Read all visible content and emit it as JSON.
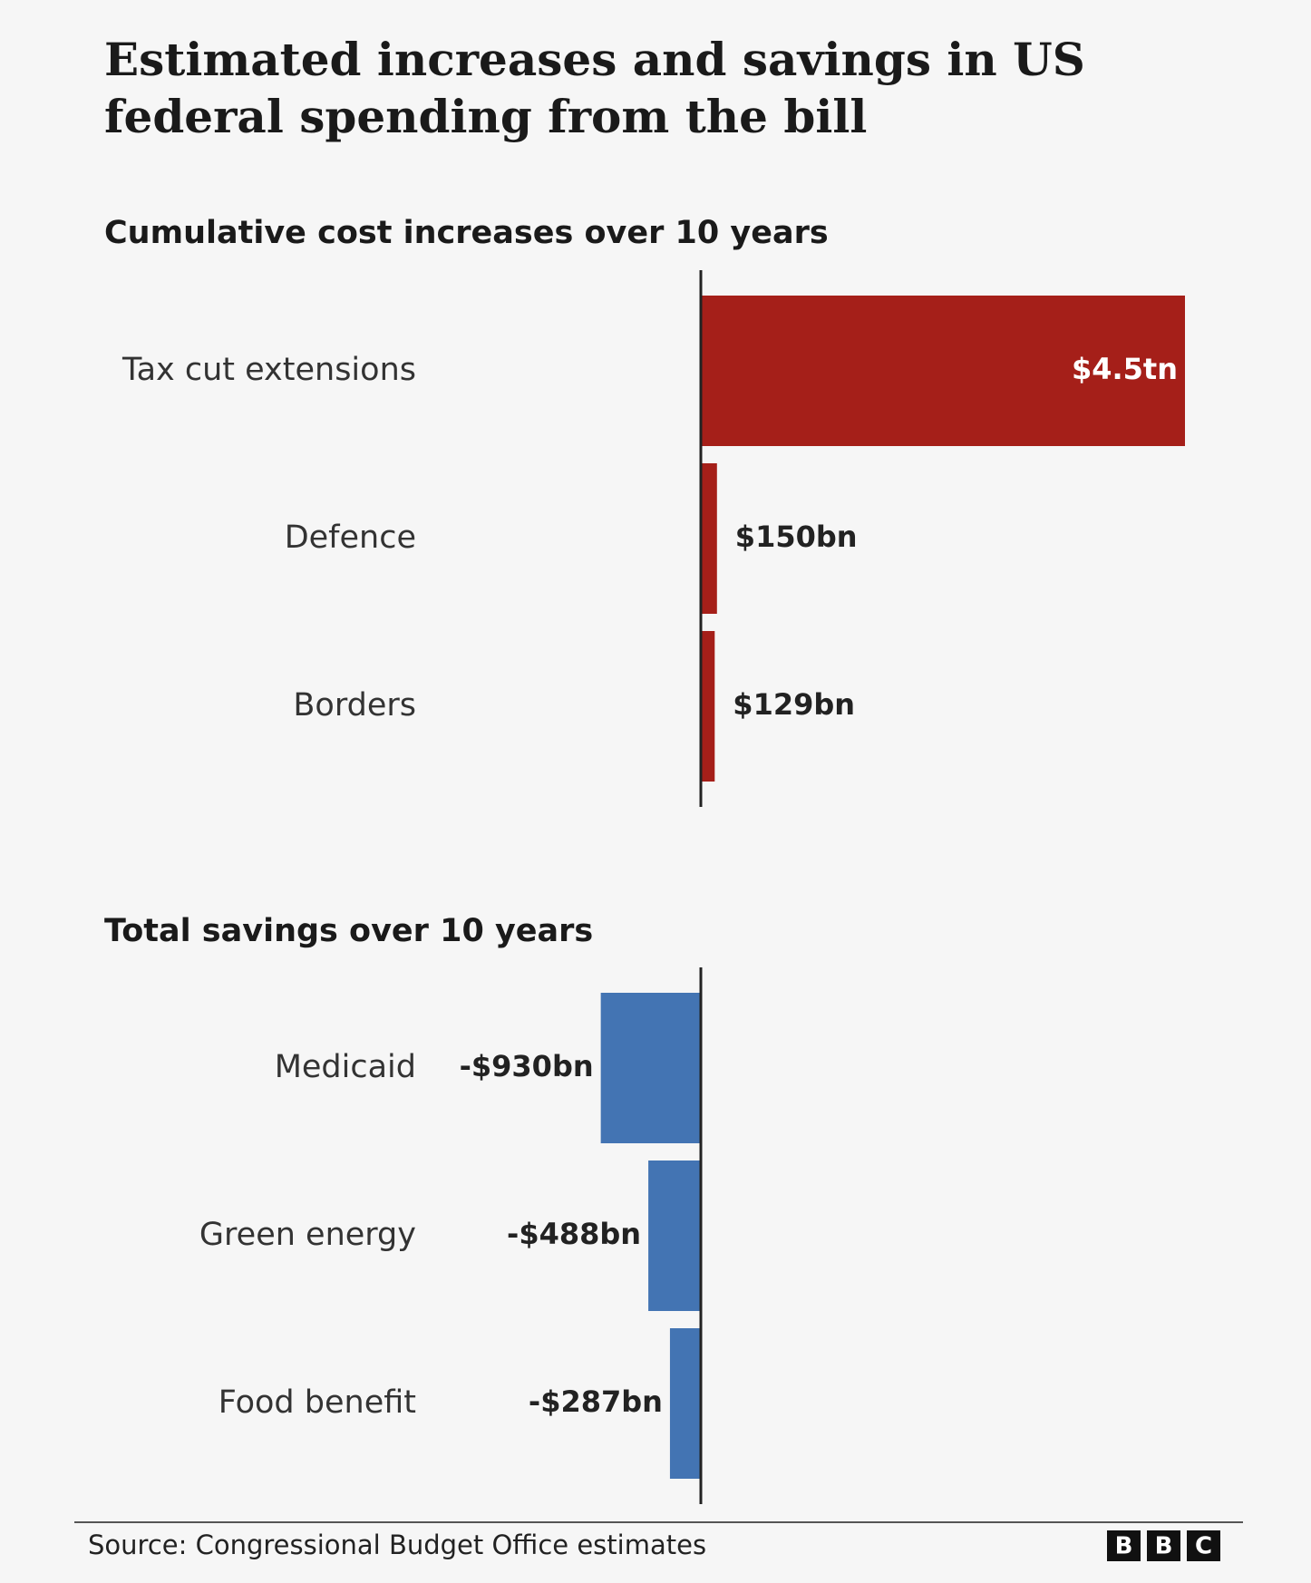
{
  "title": "Estimated increases and savings in US federal spending from the bill",
  "chart_data": [
    {
      "type": "bar",
      "title": "Cumulative cost increases over 10 years",
      "categories": [
        "Tax cut extensions",
        "Defence",
        "Borders"
      ],
      "values": [
        4500,
        150,
        129
      ],
      "value_labels": [
        "$4.5tn",
        "$150bn",
        "$129bn"
      ],
      "color": "#a51f19"
    },
    {
      "type": "bar",
      "title": "Total savings over 10 years",
      "categories": [
        "Medicaid",
        "Green energy",
        "Food benefit"
      ],
      "values": [
        -930,
        -488,
        -287
      ],
      "value_labels": [
        "-$930bn",
        "-$488bn",
        "-$287bn"
      ],
      "color": "#4374b3"
    }
  ],
  "source": "Source: Congressional Budget Office estimates",
  "logo": [
    "B",
    "B",
    "C"
  ]
}
